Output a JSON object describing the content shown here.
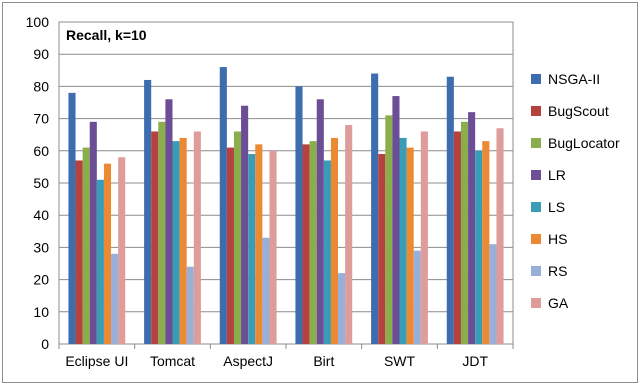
{
  "chart_data": {
    "type": "bar",
    "title": "Recall, k=10",
    "xlabel": "",
    "ylabel": "",
    "ylim": [
      0,
      100
    ],
    "yticks": [
      0,
      10,
      20,
      30,
      40,
      50,
      60,
      70,
      80,
      90,
      100
    ],
    "grid": true,
    "legend_position": "right",
    "categories": [
      "Eclipse UI",
      "Tomcat",
      "AspectJ",
      "Birt",
      "SWT",
      "JDT"
    ],
    "series": [
      {
        "name": "NSGA-II",
        "color": "#3E6DAF",
        "values": [
          78,
          82,
          86,
          80,
          84,
          83
        ]
      },
      {
        "name": "BugScout",
        "color": "#B5423E",
        "values": [
          57,
          66,
          61,
          62,
          59,
          66
        ]
      },
      {
        "name": "BugLocator",
        "color": "#8AAE4B",
        "values": [
          61,
          69,
          66,
          63,
          71,
          69
        ]
      },
      {
        "name": "LR",
        "color": "#6B4E96",
        "values": [
          69,
          76,
          74,
          76,
          77,
          72
        ]
      },
      {
        "name": "LS",
        "color": "#3A9DB8",
        "values": [
          51,
          63,
          59,
          57,
          64,
          60
        ]
      },
      {
        "name": "HS",
        "color": "#EC8A34",
        "values": [
          56,
          64,
          62,
          64,
          61,
          63
        ]
      },
      {
        "name": "RS",
        "color": "#98B0D8",
        "values": [
          28,
          24,
          33,
          22,
          29,
          31
        ]
      },
      {
        "name": "GA",
        "color": "#DE9C9A",
        "values": [
          58,
          66,
          60,
          68,
          66,
          67
        ]
      }
    ]
  }
}
